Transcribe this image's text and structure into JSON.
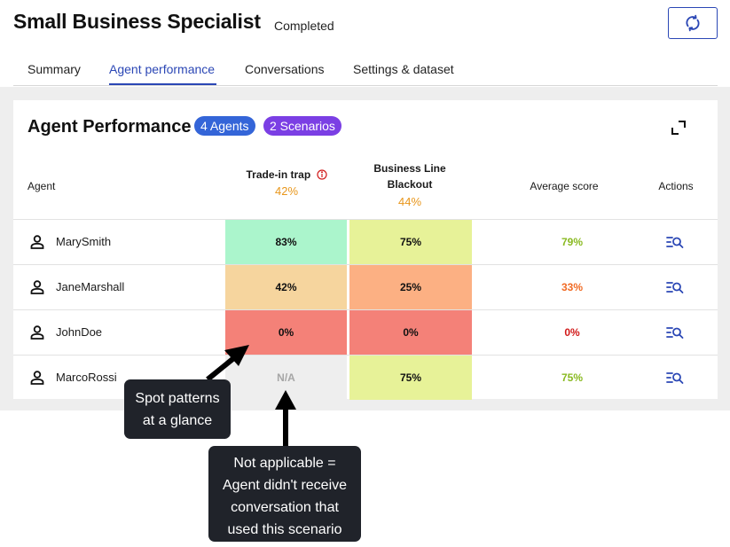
{
  "header": {
    "title": "Small Business Specialist",
    "status": "Completed"
  },
  "tabs": [
    {
      "label": "Summary",
      "active": false
    },
    {
      "label": "Agent performance",
      "active": true
    },
    {
      "label": "Conversations",
      "active": false
    },
    {
      "label": "Settings & dataset",
      "active": false
    }
  ],
  "card": {
    "title": "Agent Performance",
    "agents_badge": "4 Agents",
    "scenarios_badge": "2 Scenarios"
  },
  "table": {
    "columns": {
      "agent": "Agent",
      "trade_in": {
        "label": "Trade-in trap",
        "pct": "42%"
      },
      "blackout": {
        "label_line1": "Business Line",
        "label_line2": "Blackout",
        "pct": "44%"
      },
      "average": "Average score",
      "actions": "Actions"
    },
    "rows": [
      {
        "name": "MarySmith",
        "trade_in": "83%",
        "blackout": "75%",
        "average": "79%"
      },
      {
        "name": "JaneMarshall",
        "trade_in": "42%",
        "blackout": "25%",
        "average": "33%"
      },
      {
        "name": "JohnDoe",
        "trade_in": "0%",
        "blackout": "0%",
        "average": "0%"
      },
      {
        "name": "MarcoRossi",
        "trade_in": "N/A",
        "blackout": "75%",
        "average": "75%"
      }
    ]
  },
  "callouts": {
    "patterns_line1": "Spot patterns",
    "patterns_line2": "at a glance",
    "na_line1": "Not applicable =",
    "na_line2": "Agent didn't receive",
    "na_line3": "conversation that",
    "na_line4": "used this scenario"
  },
  "colors": {
    "accent": "#2b47b5",
    "agents_badge": "#3465d8",
    "scenarios_badge": "#7b3fe4",
    "heat_high": "#abf5cc",
    "heat_good": "#e7f298",
    "heat_mid": "#f6d59e",
    "heat_low": "#fcb083",
    "heat_zero": "#f48178",
    "heat_na": "#eeeeee",
    "score_good": "#8aba22",
    "score_mid": "#f06a24",
    "score_bad": "#d11a1a",
    "header_pct": "#e8961b"
  },
  "icons": {
    "refresh": "refresh-icon",
    "expand": "expand-icon",
    "info": "info-icon",
    "person": "person-icon",
    "view_details": "list-search-icon"
  }
}
